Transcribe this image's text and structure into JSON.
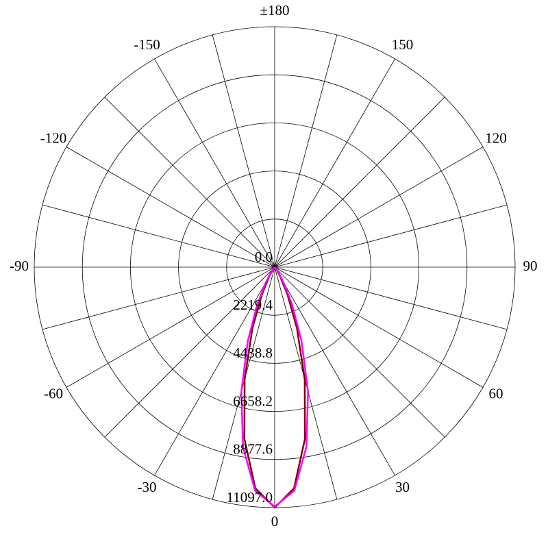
{
  "chart_data": {
    "type": "polar",
    "x": [
      -50,
      -45,
      -40,
      -35,
      -30,
      -25,
      -20,
      -15,
      -10,
      -5,
      0,
      5,
      10,
      15,
      20,
      25,
      30,
      35,
      40,
      45,
      50
    ],
    "series": [
      {
        "color": "#800000",
        "values": [
          0,
          8,
          41,
          168,
          542,
          1406,
          3006,
          5359,
          8047,
          10243,
          11097,
          10243,
          8047,
          5359,
          3006,
          1406,
          542,
          168,
          41,
          8,
          0
        ]
      },
      {
        "color": "#ff00ff",
        "values": [
          0,
          22,
          92,
          306,
          834,
          1889,
          3622,
          5946,
          8425,
          10360,
          11050,
          10360,
          8425,
          5946,
          3622,
          1889,
          834,
          306,
          92,
          22,
          0
        ]
      }
    ],
    "ylim": [
      0,
      11097
    ],
    "yticks": [
      {
        "value": 0,
        "label": "0.0"
      },
      {
        "value": 2219.4,
        "label": "2219.4"
      },
      {
        "value": 4438.8,
        "label": "4438.8"
      },
      {
        "value": 6658.2,
        "label": "6658.2"
      },
      {
        "value": 8877.6,
        "label": "8877.6"
      },
      {
        "value": 11097,
        "label": "11097.0"
      }
    ],
    "xticks": [
      -150,
      -120,
      -90,
      -60,
      -30,
      0,
      30,
      60,
      90,
      120,
      150,
      {
        "value": 180,
        "label": "±180"
      }
    ],
    "spokes": [
      0,
      15,
      30,
      45,
      60,
      75,
      90,
      105,
      120,
      135,
      150,
      165,
      180,
      195,
      210,
      225,
      240,
      255,
      270,
      285,
      300,
      315,
      330,
      345
    ]
  }
}
